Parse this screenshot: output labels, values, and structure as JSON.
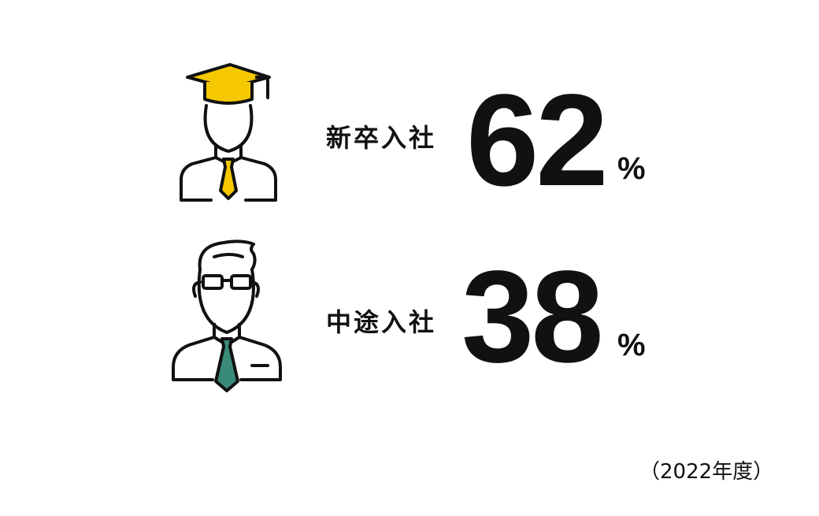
{
  "stats": [
    {
      "label": "新卒入社",
      "value": "62",
      "unit": "%",
      "icon": "graduate-icon",
      "accent": "#F5C800"
    },
    {
      "label": "中途入社",
      "value": "38",
      "unit": "%",
      "icon": "businessman-icon",
      "accent": "#3A8A78"
    }
  ],
  "footnote": "（2022年度）"
}
